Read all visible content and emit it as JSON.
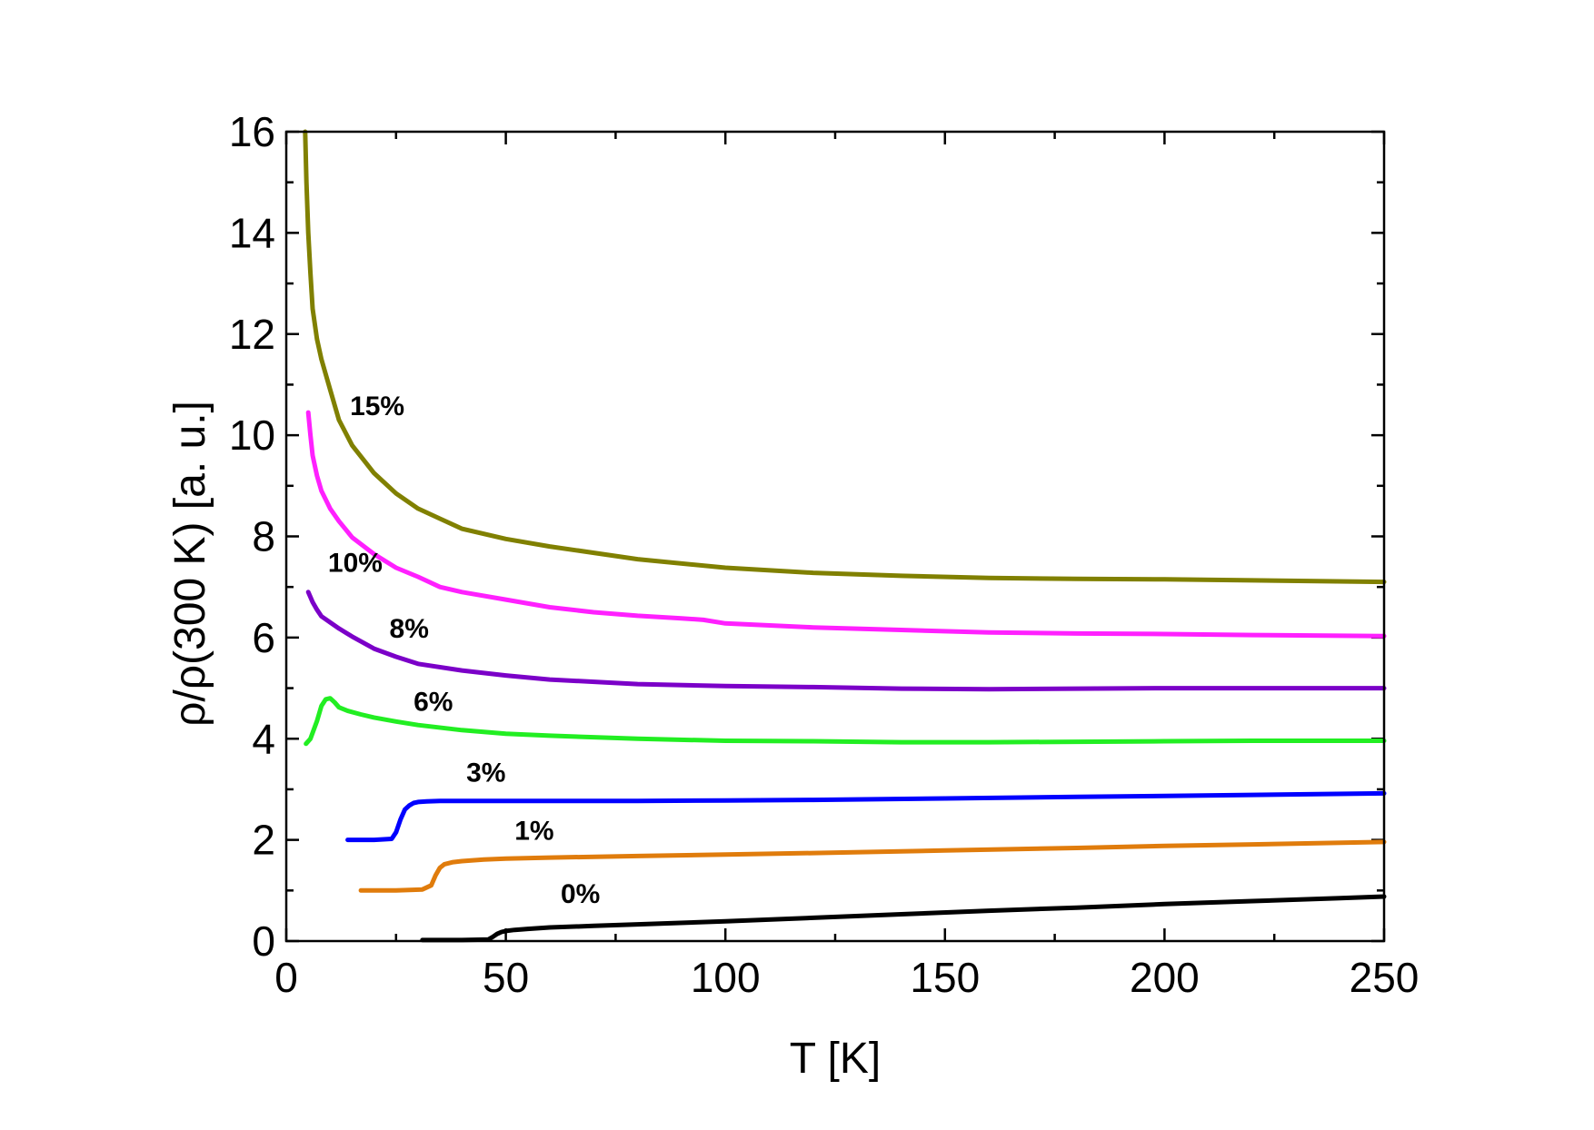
{
  "chart_data": {
    "type": "line",
    "title": "",
    "xlabel": "T [K]",
    "ylabel": "ρ/ρ(300 K) [a. u.]",
    "xlim": [
      0,
      250
    ],
    "ylim": [
      0,
      16
    ],
    "x_ticks": [
      0,
      50,
      100,
      150,
      200,
      250
    ],
    "y_ticks": [
      0,
      2,
      4,
      6,
      8,
      10,
      12,
      14,
      16
    ],
    "x_tick_labels": [
      "0",
      "50",
      "100",
      "150",
      "200",
      "250"
    ],
    "y_tick_labels": [
      "0",
      "2",
      "4",
      "6",
      "8",
      "10",
      "12",
      "14",
      "16"
    ],
    "grid": false,
    "legend": "none",
    "series": [
      {
        "name": "0%",
        "color": "#000000",
        "x": [
          31,
          40,
          46,
          47,
          48,
          49,
          50,
          52,
          55,
          60,
          70,
          80,
          100,
          120,
          140,
          160,
          180,
          200,
          220,
          240,
          250
        ],
        "y": [
          0.02,
          0.02,
          0.03,
          0.08,
          0.14,
          0.18,
          0.2,
          0.22,
          0.24,
          0.27,
          0.3,
          0.33,
          0.39,
          0.46,
          0.53,
          0.6,
          0.66,
          0.73,
          0.79,
          0.85,
          0.88
        ]
      },
      {
        "name": "1%",
        "color": "#e07c0c",
        "x": [
          17,
          25,
          31,
          33,
          34,
          35,
          36,
          38,
          40,
          45,
          50,
          60,
          80,
          100,
          120,
          150,
          180,
          200,
          220,
          250
        ],
        "y": [
          1.0,
          1.0,
          1.02,
          1.1,
          1.3,
          1.45,
          1.52,
          1.56,
          1.58,
          1.61,
          1.63,
          1.65,
          1.68,
          1.71,
          1.74,
          1.79,
          1.84,
          1.88,
          1.91,
          1.96
        ]
      },
      {
        "name": "3%",
        "color": "#0000ff",
        "x": [
          14,
          20,
          24,
          25,
          26,
          27,
          28,
          29,
          30,
          32,
          35,
          40,
          50,
          60,
          80,
          100,
          120,
          150,
          180,
          200,
          220,
          250
        ],
        "y": [
          2.0,
          2.0,
          2.02,
          2.15,
          2.4,
          2.6,
          2.68,
          2.73,
          2.75,
          2.76,
          2.77,
          2.77,
          2.77,
          2.77,
          2.77,
          2.78,
          2.79,
          2.82,
          2.85,
          2.87,
          2.89,
          2.92
        ]
      },
      {
        "name": "6%",
        "color": "#22ee22",
        "x": [
          4.5,
          5.5,
          7,
          8,
          9,
          10,
          11,
          12,
          14,
          17,
          20,
          25,
          30,
          40,
          50,
          60,
          80,
          100,
          120,
          140,
          160,
          180,
          200,
          220,
          250
        ],
        "y": [
          3.9,
          4.0,
          4.35,
          4.65,
          4.78,
          4.8,
          4.72,
          4.62,
          4.55,
          4.48,
          4.42,
          4.34,
          4.27,
          4.17,
          4.1,
          4.06,
          4.0,
          3.96,
          3.95,
          3.93,
          3.93,
          3.94,
          3.95,
          3.96,
          3.96
        ]
      },
      {
        "name": "8%",
        "color": "#7b00c8",
        "x": [
          5,
          6,
          7,
          8,
          10,
          12,
          15,
          20,
          25,
          30,
          40,
          50,
          60,
          80,
          100,
          120,
          140,
          160,
          180,
          200,
          220,
          250
        ],
        "y": [
          6.9,
          6.7,
          6.55,
          6.42,
          6.3,
          6.18,
          6.02,
          5.78,
          5.62,
          5.48,
          5.35,
          5.25,
          5.17,
          5.08,
          5.04,
          5.02,
          4.99,
          4.98,
          4.99,
          5.0,
          5.0,
          5.0
        ]
      },
      {
        "name": "10%",
        "color": "#ff20ff",
        "x": [
          5,
          5.5,
          6,
          7,
          8,
          10,
          12,
          15,
          20,
          25,
          30,
          35,
          40,
          50,
          60,
          70,
          80,
          90,
          95,
          100,
          120,
          140,
          160,
          180,
          200,
          220,
          250
        ],
        "y": [
          10.45,
          10.0,
          9.6,
          9.2,
          8.9,
          8.55,
          8.3,
          7.98,
          7.65,
          7.38,
          7.2,
          7.0,
          6.9,
          6.75,
          6.6,
          6.5,
          6.43,
          6.38,
          6.35,
          6.28,
          6.2,
          6.15,
          6.1,
          6.08,
          6.07,
          6.05,
          6.03
        ]
      },
      {
        "name": "15%",
        "color": "#808000",
        "x": [
          4.3,
          4.6,
          5,
          5.5,
          6,
          7,
          8,
          9,
          10,
          12,
          15,
          20,
          25,
          30,
          35,
          40,
          50,
          60,
          80,
          100,
          120,
          140,
          160,
          180,
          200,
          220,
          250
        ],
        "y": [
          16.0,
          15.0,
          14.0,
          13.2,
          12.5,
          11.9,
          11.5,
          11.2,
          10.9,
          10.3,
          9.8,
          9.25,
          8.85,
          8.55,
          8.35,
          8.15,
          7.95,
          7.8,
          7.55,
          7.38,
          7.28,
          7.22,
          7.18,
          7.16,
          7.15,
          7.13,
          7.1
        ]
      }
    ],
    "annotations": [
      {
        "text": "15%",
        "x": 14.5,
        "y": 10.4
      },
      {
        "text": "10%",
        "x": 9.5,
        "y": 7.3
      },
      {
        "text": "8%",
        "x": 23.5,
        "y": 6.0
      },
      {
        "text": "6%",
        "x": 29,
        "y": 4.55
      },
      {
        "text": "3%",
        "x": 41,
        "y": 3.15
      },
      {
        "text": "1%",
        "x": 52,
        "y": 2.0
      },
      {
        "text": "0%",
        "x": 62.5,
        "y": 0.75
      }
    ]
  }
}
